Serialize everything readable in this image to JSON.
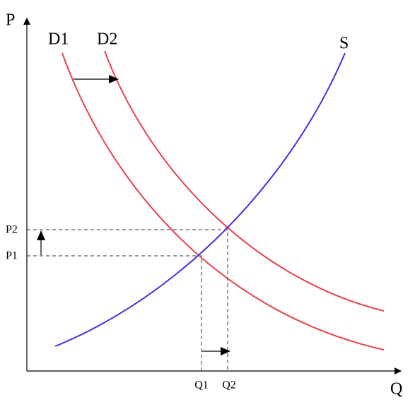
{
  "axes": {
    "y": "P",
    "x": "Q"
  },
  "curves": {
    "d1": "D1",
    "d2": "D2",
    "s": "S"
  },
  "levels": {
    "p1": "P1",
    "p2": "P2",
    "q1": "Q1",
    "q2": "Q2"
  }
}
